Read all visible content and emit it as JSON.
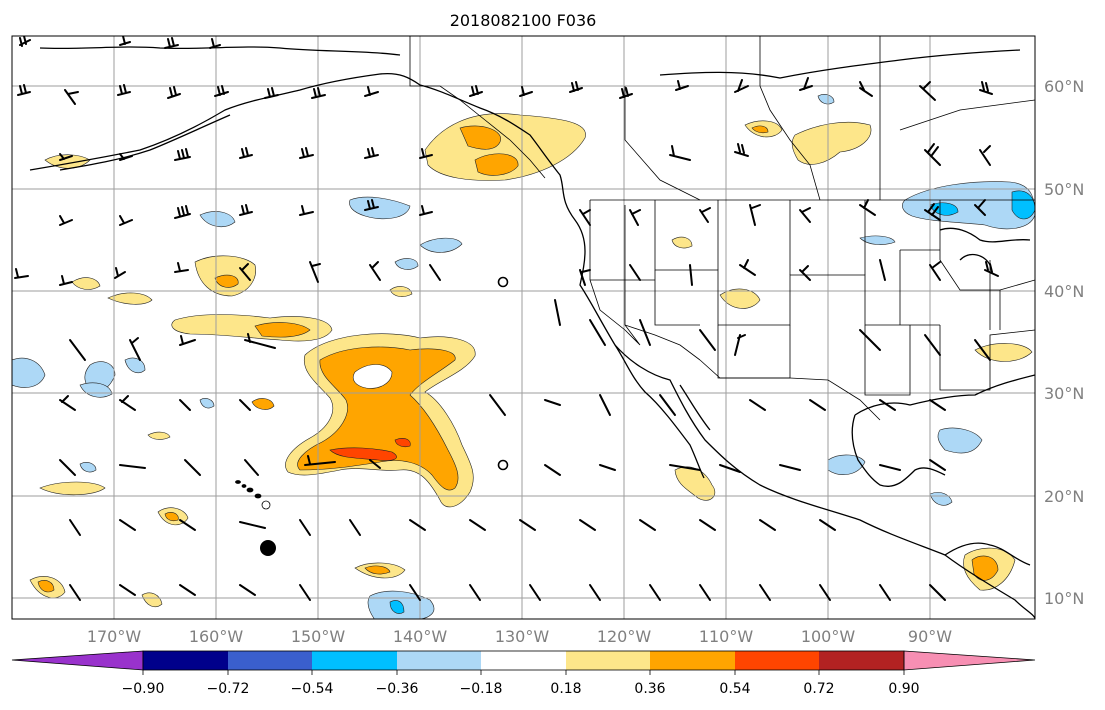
{
  "title": "2018082100 F036",
  "lat_labels": [
    "60°N",
    "50°N",
    "40°N",
    "30°N",
    "20°N",
    "10°N"
  ],
  "lon_labels": [
    "170°W",
    "160°W",
    "150°W",
    "140°W",
    "130°W",
    "120°W",
    "110°W",
    "100°W",
    "90°W"
  ],
  "colorbar": {
    "labels": [
      "−0.90",
      "−0.72",
      "−0.54",
      "−0.36",
      "−0.18",
      "0.18",
      "0.36",
      "0.54",
      "0.72",
      "0.90"
    ],
    "colors": [
      "#9932cc",
      "#00008b",
      "#3a5fcd",
      "#00bfff",
      "#add8f6",
      "#ffffff",
      "#fde68a",
      "#ffa500",
      "#ff4500",
      "#b22222",
      "#f78fb3"
    ]
  },
  "colors": {
    "light_yellow": "#fde68a",
    "orange": "#ffa500",
    "red_orange": "#ff4500",
    "light_blue": "#add8f6",
    "deep_sky_blue": "#00bfff"
  },
  "markers": [
    {
      "type": "filled-circle",
      "lon": -154.7,
      "lat": 14.8
    },
    {
      "type": "open-circle",
      "lon": -131.2,
      "lat": 40.9
    },
    {
      "type": "open-circle",
      "lon": -131.2,
      "lat": 23.0
    }
  ]
}
